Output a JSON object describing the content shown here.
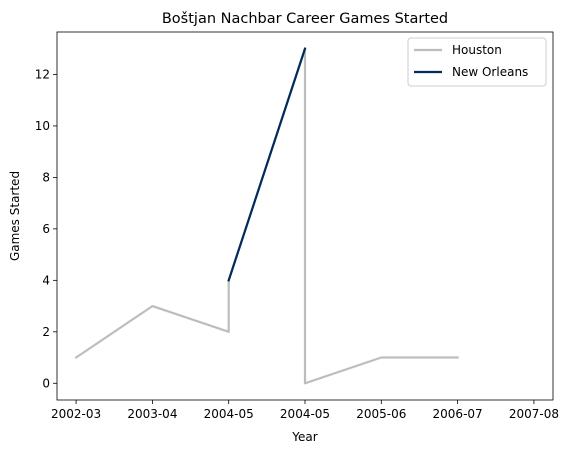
{
  "chart_data": {
    "type": "line",
    "title": "Boštjan Nachbar Career Games Started",
    "xlabel": "Year",
    "ylabel": "Games Started",
    "categories": [
      "2002-03",
      "2003-04",
      "2004-05",
      "2004-05",
      "2005-06",
      "2006-07",
      "2007-08"
    ],
    "x_tick_positions": [
      0,
      1,
      2,
      3,
      4,
      5,
      6
    ],
    "ylim": [
      -0.65,
      13.65
    ],
    "y_ticks": [
      0,
      2,
      4,
      6,
      8,
      10,
      12
    ],
    "grid": false,
    "legend_position": "top-right",
    "series": [
      {
        "name": "Houston",
        "color": "#bdbdbd",
        "points": [
          {
            "x": 0,
            "y": 1
          },
          {
            "x": 1,
            "y": 3
          },
          {
            "x": 2,
            "y": 2
          },
          {
            "x": 2,
            "y": 4
          },
          {
            "x": 3,
            "y": 13
          },
          {
            "x": 3,
            "y": 0
          },
          {
            "x": 4,
            "y": 1
          },
          {
            "x": 5,
            "y": 1
          }
        ]
      },
      {
        "name": "New Orleans",
        "color": "#002b5c",
        "points": [
          {
            "x": 2,
            "y": 4
          },
          {
            "x": 3,
            "y": 13
          }
        ]
      }
    ]
  }
}
